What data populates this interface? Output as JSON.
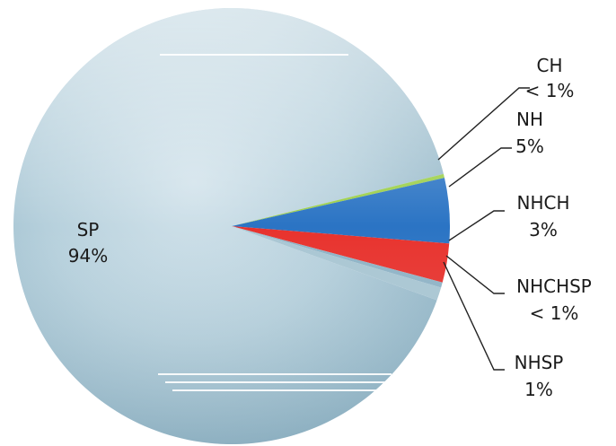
{
  "chart_data": {
    "type": "pie",
    "title": "",
    "slices": [
      {
        "name": "SP",
        "value_label": "94%",
        "value": 94,
        "color": "#b6d0dc"
      },
      {
        "name": "CH",
        "value_label": "< 1%",
        "value": 0.3,
        "color": "#9ccf4a"
      },
      {
        "name": "NH",
        "value_label": "5%",
        "value": 5,
        "color": "#2b74c4"
      },
      {
        "name": "NHCH",
        "value_label": "3%",
        "value": 3,
        "color": "#e8322d"
      },
      {
        "name": "NHCHSP",
        "value_label": "< 1%",
        "value": 0.4,
        "color": "#8fb3c6"
      },
      {
        "name": "NHSP",
        "value_label": "1%",
        "value": 1,
        "color": "#a9c6d3"
      }
    ],
    "legend": "none"
  }
}
